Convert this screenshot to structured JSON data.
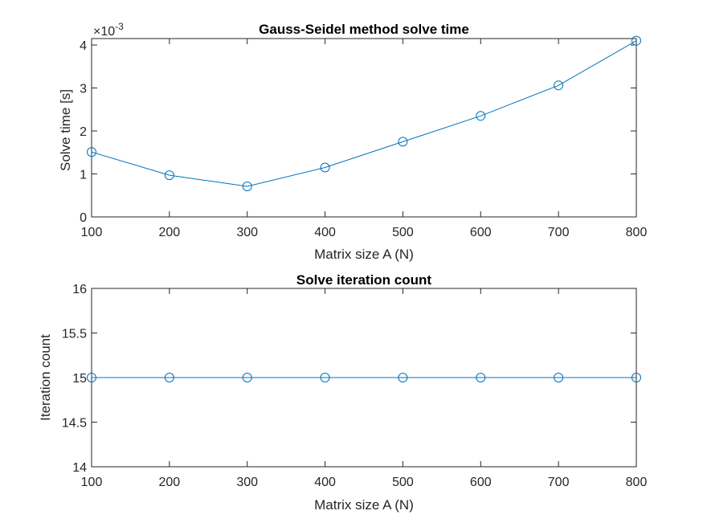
{
  "chart_data": [
    {
      "type": "line",
      "title": "Gauss-Seidel method solve time",
      "xlabel": "Matrix size A (N)",
      "ylabel": "Solve time [s]",
      "y_exponent_label": "×10",
      "y_exponent_power": "-3",
      "xlim": [
        100,
        800
      ],
      "ylim": [
        0,
        4.15
      ],
      "xticks": [
        100,
        200,
        300,
        400,
        500,
        600,
        700,
        800
      ],
      "yticks": [
        0,
        1,
        2,
        3,
        4
      ],
      "ytick_labels": [
        "0",
        "1",
        "2",
        "3",
        "4"
      ],
      "grid": false,
      "marker": "circle",
      "color": "#0072BD",
      "x": [
        100,
        200,
        300,
        400,
        500,
        600,
        700,
        800
      ],
      "y": [
        0.00151,
        0.00097,
        0.00071,
        0.00115,
        0.00175,
        0.00235,
        0.00306,
        0.0041
      ],
      "y_display": [
        1.51,
        0.97,
        0.71,
        1.15,
        1.75,
        2.35,
        3.06,
        4.1
      ]
    },
    {
      "type": "line",
      "title": "Solve iteration count",
      "xlabel": "Matrix size A (N)",
      "ylabel": "Iteration count",
      "xlim": [
        100,
        800
      ],
      "ylim": [
        14,
        16
      ],
      "xticks": [
        100,
        200,
        300,
        400,
        500,
        600,
        700,
        800
      ],
      "yticks": [
        14,
        14.5,
        15,
        15.5,
        16
      ],
      "ytick_labels": [
        "14",
        "14.5",
        "15",
        "15.5",
        "16"
      ],
      "grid": false,
      "marker": "circle",
      "color": "#0072BD",
      "x": [
        100,
        200,
        300,
        400,
        500,
        600,
        700,
        800
      ],
      "y": [
        15,
        15,
        15,
        15,
        15,
        15,
        15,
        15
      ],
      "y_display": [
        15,
        15,
        15,
        15,
        15,
        15,
        15,
        15
      ]
    }
  ]
}
